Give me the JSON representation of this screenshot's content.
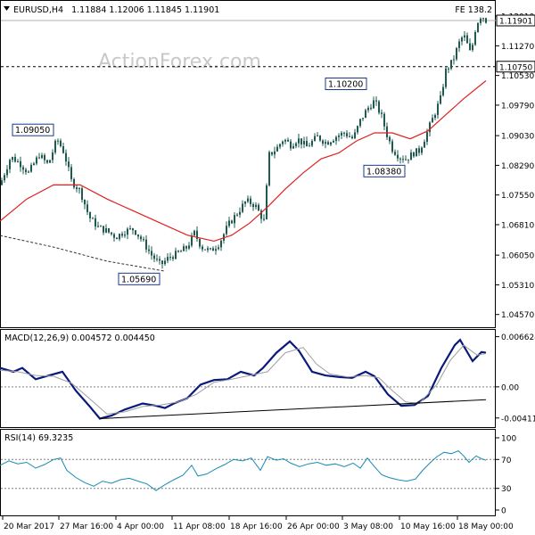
{
  "header": {
    "symbol": "EURUSD,H4",
    "ohlc": "1.11884 1.12006 1.11845 1.11901",
    "fe_label": "FE 138.2",
    "watermark": "ActionForex.com"
  },
  "colors": {
    "candle": "#1e5a50",
    "ma": "#e02020",
    "macd_main": "#0a1a7a",
    "macd_signal": "#a0a0a0",
    "rsi": "#1a8ab4",
    "trendline": "#000000",
    "grid_dash": "#808080"
  },
  "chart_data": [
    {
      "type": "candlestick",
      "name": "EURUSD,H4",
      "ylim": [
        1.0423,
        1.1239
      ],
      "y_ticks": [
        "1.12010",
        "1.11270",
        "1.10530",
        "1.09790",
        "1.09030",
        "1.08290",
        "1.07550",
        "1.06810",
        "1.06050",
        "1.05310",
        "1.04570"
      ],
      "last_price": 1.11901,
      "last_price_label": "1.11901",
      "horizontal_level": 1.1075,
      "horizontal_level_label": "1.10750",
      "annotations": [
        {
          "label": "1.09050",
          "price": 1.0905
        },
        {
          "label": "1.05690",
          "price": 1.0569
        },
        {
          "label": "1.10200",
          "price": 1.102
        },
        {
          "label": "1.08380",
          "price": 1.0838
        }
      ],
      "close_path": [
        [
          0,
          1.078
        ],
        [
          12,
          1.085
        ],
        [
          22,
          1.0835
        ],
        [
          32,
          1.081
        ],
        [
          44,
          1.0855
        ],
        [
          54,
          1.083
        ],
        [
          64,
          1.0895
        ],
        [
          72,
          1.086
        ],
        [
          80,
          1.079
        ],
        [
          90,
          1.0765
        ],
        [
          100,
          1.07
        ],
        [
          110,
          1.0675
        ],
        [
          120,
          1.0665
        ],
        [
          130,
          1.065
        ],
        [
          140,
          1.0665
        ],
        [
          150,
          1.067
        ],
        [
          160,
          1.064
        ],
        [
          170,
          1.0605
        ],
        [
          180,
          1.058
        ],
        [
          190,
          1.06
        ],
        [
          200,
          1.061
        ],
        [
          210,
          1.0625
        ],
        [
          218,
          1.066
        ],
        [
          226,
          1.0625
        ],
        [
          236,
          1.0615
        ],
        [
          246,
          1.0635
        ],
        [
          256,
          1.068
        ],
        [
          266,
          1.071
        ],
        [
          276,
          1.074
        ],
        [
          286,
          1.073
        ],
        [
          296,
          1.069
        ],
        [
          302,
          1.0855
        ],
        [
          310,
          1.087
        ],
        [
          318,
          1.0895
        ],
        [
          326,
          1.088
        ],
        [
          334,
          1.0895
        ],
        [
          344,
          1.0875
        ],
        [
          356,
          1.09
        ],
        [
          366,
          1.0885
        ],
        [
          376,
          1.09
        ],
        [
          386,
          1.091
        ],
        [
          396,
          1.0895
        ],
        [
          404,
          1.094
        ],
        [
          412,
          1.097
        ],
        [
          420,
          1.099
        ],
        [
          428,
          1.095
        ],
        [
          434,
          1.0905
        ],
        [
          440,
          1.087
        ],
        [
          448,
          1.085
        ],
        [
          456,
          1.0845
        ],
        [
          464,
          1.086
        ],
        [
          470,
          1.0865
        ],
        [
          478,
          1.0905
        ],
        [
          486,
          1.095
        ],
        [
          494,
          1.0995
        ],
        [
          500,
          1.1065
        ],
        [
          508,
          1.109
        ],
        [
          514,
          1.113
        ],
        [
          520,
          1.1155
        ],
        [
          528,
          1.1105
        ],
        [
          534,
          1.118
        ],
        [
          540,
          1.1205
        ],
        [
          545,
          1.119
        ]
      ],
      "moving_average": [
        [
          0,
          1.069
        ],
        [
          30,
          1.0745
        ],
        [
          60,
          1.078
        ],
        [
          90,
          1.078
        ],
        [
          120,
          1.0745
        ],
        [
          150,
          1.0715
        ],
        [
          180,
          1.0685
        ],
        [
          210,
          1.0655
        ],
        [
          240,
          1.064
        ],
        [
          260,
          1.0655
        ],
        [
          280,
          1.0685
        ],
        [
          300,
          1.0725
        ],
        [
          320,
          1.077
        ],
        [
          340,
          1.081
        ],
        [
          360,
          1.0845
        ],
        [
          380,
          1.086
        ],
        [
          400,
          1.089
        ],
        [
          420,
          1.091
        ],
        [
          440,
          1.091
        ],
        [
          460,
          1.0895
        ],
        [
          480,
          1.0915
        ],
        [
          500,
          1.0955
        ],
        [
          520,
          1.0995
        ],
        [
          545,
          1.104
        ]
      ],
      "lower_trendline": [
        [
          0,
          1.0654
        ],
        [
          60,
          1.0625
        ],
        [
          120,
          1.059
        ],
        [
          185,
          1.0565
        ]
      ]
    },
    {
      "type": "line",
      "name": "MACD(12,26,9) 0.004572 0.004450",
      "title": "MACD(12,26,9) 0.004572 0.004450",
      "ylim": [
        -0.0052,
        0.0074
      ],
      "y_ticks": [
        {
          "label": "0.006624",
          "value": 0.006624
        },
        {
          "label": "0.00",
          "value": 0
        },
        {
          "label": "-0.004116",
          "value": -0.004116
        }
      ],
      "series": [
        {
          "role": "main",
          "points": [
            [
              0,
              0.0025
            ],
            [
              15,
              0.002
            ],
            [
              25,
              0.0025
            ],
            [
              40,
              0.001
            ],
            [
              55,
              0.0015
            ],
            [
              70,
              0.002
            ],
            [
              85,
              -0.0005
            ],
            [
              100,
              -0.0025
            ],
            [
              112,
              -0.0042
            ],
            [
              125,
              -0.0038
            ],
            [
              140,
              -0.003
            ],
            [
              160,
              -0.0022
            ],
            [
              175,
              -0.0025
            ],
            [
              185,
              -0.0028
            ],
            [
              195,
              -0.0022
            ],
            [
              210,
              -0.0015
            ],
            [
              225,
              0.0003
            ],
            [
              240,
              0.0009
            ],
            [
              255,
              0.001
            ],
            [
              270,
              0.002
            ],
            [
              285,
              0.0015
            ],
            [
              295,
              0.0025
            ],
            [
              310,
              0.0045
            ],
            [
              325,
              0.006
            ],
            [
              335,
              0.0048
            ],
            [
              350,
              0.002
            ],
            [
              365,
              0.0015
            ],
            [
              380,
              0.0013
            ],
            [
              395,
              0.0012
            ],
            [
              410,
              0.002
            ],
            [
              420,
              0.0014
            ],
            [
              435,
              -0.001
            ],
            [
              450,
              -0.0025
            ],
            [
              465,
              -0.0024
            ],
            [
              480,
              -0.0012
            ],
            [
              495,
              0.0025
            ],
            [
              510,
              0.0055
            ],
            [
              516,
              0.0062
            ],
            [
              530,
              0.0034
            ],
            [
              540,
              0.0046
            ],
            [
              545,
              0.0045
            ]
          ]
        },
        {
          "role": "signal",
          "points": [
            [
              0,
              0.0022
            ],
            [
              20,
              0.002
            ],
            [
              40,
              0.0015
            ],
            [
              60,
              0.0014
            ],
            [
              80,
              0.0005
            ],
            [
              100,
              -0.0015
            ],
            [
              120,
              -0.0036
            ],
            [
              140,
              -0.0033
            ],
            [
              160,
              -0.0026
            ],
            [
              180,
              -0.0024
            ],
            [
              200,
              -0.002
            ],
            [
              220,
              -0.001
            ],
            [
              240,
              0.0006
            ],
            [
              260,
              0.001
            ],
            [
              280,
              0.0015
            ],
            [
              300,
              0.002
            ],
            [
              320,
              0.0045
            ],
            [
              340,
              0.0052
            ],
            [
              355,
              0.003
            ],
            [
              370,
              0.0017
            ],
            [
              390,
              0.0013
            ],
            [
              410,
              0.0015
            ],
            [
              425,
              0.0012
            ],
            [
              440,
              -0.0005
            ],
            [
              455,
              -0.002
            ],
            [
              470,
              -0.0022
            ],
            [
              490,
              0.0003
            ],
            [
              505,
              0.0035
            ],
            [
              520,
              0.0055
            ],
            [
              535,
              0.0042
            ],
            [
              545,
              0.0044
            ]
          ]
        }
      ],
      "trendline": [
        [
          112,
          -0.0042
        ],
        [
          545,
          -0.0017
        ]
      ]
    },
    {
      "type": "line",
      "name": "RSI(14) 69.3235",
      "title": "RSI(14) 69.3235",
      "ylim": [
        0,
        100
      ],
      "y_ticks": [
        {
          "label": "100",
          "value": 100
        },
        {
          "label": "70",
          "value": 70
        },
        {
          "label": "30",
          "value": 30
        },
        {
          "label": "0",
          "value": 0
        }
      ],
      "levels": [
        70,
        30
      ],
      "series": [
        {
          "role": "rsi",
          "points": [
            [
              0,
              62
            ],
            [
              10,
              68
            ],
            [
              20,
              64
            ],
            [
              30,
              66
            ],
            [
              40,
              58
            ],
            [
              50,
              63
            ],
            [
              60,
              70
            ],
            [
              68,
              72
            ],
            [
              75,
              55
            ],
            [
              85,
              45
            ],
            [
              95,
              38
            ],
            [
              105,
              33
            ],
            [
              115,
              40
            ],
            [
              125,
              37
            ],
            [
              135,
              42
            ],
            [
              145,
              44
            ],
            [
              155,
              40
            ],
            [
              165,
              36
            ],
            [
              175,
              27
            ],
            [
              185,
              35
            ],
            [
              195,
              42
            ],
            [
              205,
              48
            ],
            [
              215,
              62
            ],
            [
              222,
              47
            ],
            [
              232,
              50
            ],
            [
              242,
              57
            ],
            [
              252,
              63
            ],
            [
              262,
              70
            ],
            [
              272,
              68
            ],
            [
              282,
              72
            ],
            [
              292,
              55
            ],
            [
              300,
              74
            ],
            [
              310,
              69
            ],
            [
              318,
              71
            ],
            [
              326,
              65
            ],
            [
              336,
              60
            ],
            [
              346,
              64
            ],
            [
              356,
              66
            ],
            [
              366,
              62
            ],
            [
              376,
              64
            ],
            [
              386,
              60
            ],
            [
              396,
              65
            ],
            [
              404,
              58
            ],
            [
              412,
              72
            ],
            [
              420,
              60
            ],
            [
              428,
              49
            ],
            [
              436,
              45
            ],
            [
              446,
              42
            ],
            [
              456,
              40
            ],
            [
              466,
              43
            ],
            [
              474,
              55
            ],
            [
              482,
              65
            ],
            [
              490,
              74
            ],
            [
              498,
              80
            ],
            [
              506,
              78
            ],
            [
              514,
              82
            ],
            [
              520,
              75
            ],
            [
              526,
              66
            ],
            [
              534,
              75
            ],
            [
              540,
              71
            ],
            [
              545,
              69
            ]
          ]
        }
      ]
    }
  ],
  "x_axis": {
    "labels": [
      "20 Mar 2017",
      "27 Mar 16:00",
      "4 Apr 00:00",
      "11 Apr 08:00",
      "18 Apr 16:00",
      "26 Apr 00:00",
      "3 May 08:00",
      "10 May 16:00",
      "18 May 00:00"
    ]
  }
}
